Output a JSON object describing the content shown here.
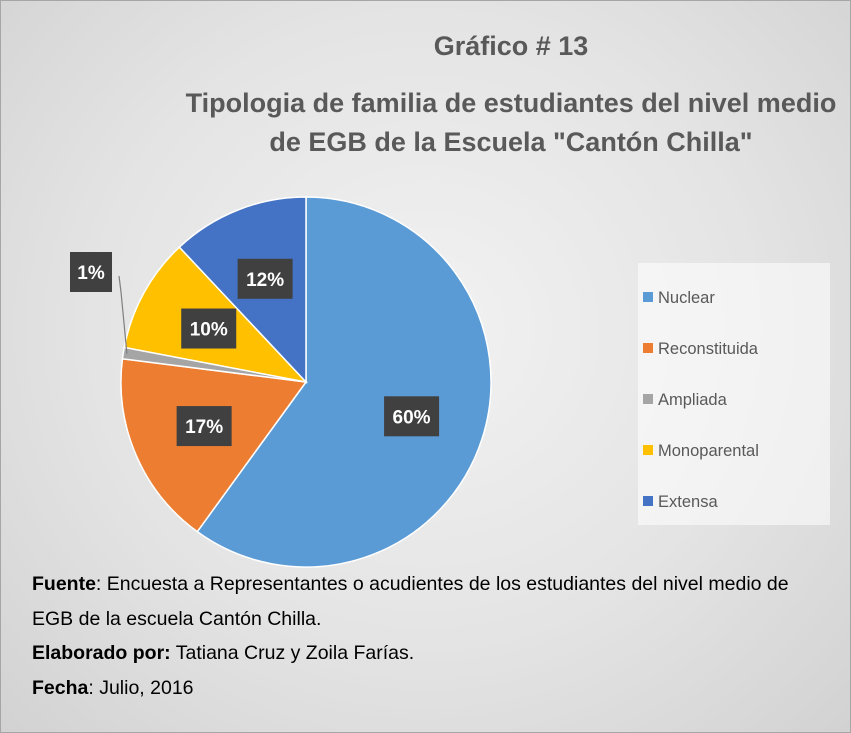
{
  "chart_data": {
    "type": "pie",
    "title": "Gráfico # 13",
    "subtitle": "Tipologia de familia de estudiantes del nivel medio de EGB de la Escuela \"Cantón Chilla\"",
    "categories": [
      "Nuclear",
      "Reconstituida",
      "Ampliada",
      "Monoparental",
      "Extensa"
    ],
    "values": [
      60,
      17,
      1,
      10,
      12
    ],
    "value_labels": [
      "60%",
      "17%",
      "1%",
      "10%",
      "12%"
    ],
    "colors": [
      "#5b9bd5",
      "#ed7d31",
      "#a5a5a5",
      "#ffc000",
      "#4472c4"
    ],
    "legend": "right"
  },
  "footnotes": [
    {
      "label": "Fuente",
      "text": ": Encuesta a Representantes o acudientes de los estudiantes del nivel medio de EGB de la escuela Cantón Chilla."
    },
    {
      "label": "Elaborado por:",
      "text": " Tatiana Cruz y Zoila Farías."
    },
    {
      "label": "Fecha",
      "text": ": Julio, 2016"
    }
  ]
}
